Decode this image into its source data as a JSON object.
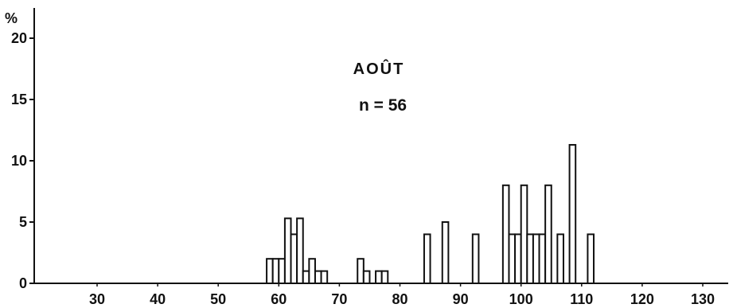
{
  "chart_data": {
    "type": "bar",
    "title": "AOÛT",
    "subtitle": "n = 56",
    "xlabel": "",
    "ylabel": "%",
    "xlim": [
      20,
      135
    ],
    "ylim": [
      0,
      21
    ],
    "x_ticks": [
      30,
      40,
      50,
      60,
      70,
      80,
      90,
      100,
      110,
      120,
      130
    ],
    "y_ticks": [
      0,
      5,
      10,
      15,
      20
    ],
    "bin_width": 1,
    "grid": false,
    "legend": "none",
    "bars": [
      {
        "x": 58.5,
        "value": 2
      },
      {
        "x": 59.5,
        "value": 2
      },
      {
        "x": 60.5,
        "value": 2
      },
      {
        "x": 61.5,
        "value": 5.3
      },
      {
        "x": 62.5,
        "value": 4
      },
      {
        "x": 63.5,
        "value": 5.3
      },
      {
        "x": 64.5,
        "value": 1
      },
      {
        "x": 65.5,
        "value": 2
      },
      {
        "x": 66.5,
        "value": 1
      },
      {
        "x": 67.5,
        "value": 1
      },
      {
        "x": 73.5,
        "value": 2
      },
      {
        "x": 74.5,
        "value": 1
      },
      {
        "x": 76.5,
        "value": 1
      },
      {
        "x": 77.5,
        "value": 1
      },
      {
        "x": 84.5,
        "value": 4
      },
      {
        "x": 87.5,
        "value": 5
      },
      {
        "x": 92.5,
        "value": 4
      },
      {
        "x": 97.5,
        "value": 8
      },
      {
        "x": 98.5,
        "value": 4
      },
      {
        "x": 99.5,
        "value": 4
      },
      {
        "x": 100.5,
        "value": 8
      },
      {
        "x": 101.5,
        "value": 4
      },
      {
        "x": 102.5,
        "value": 4
      },
      {
        "x": 103.5,
        "value": 4
      },
      {
        "x": 104.5,
        "value": 8
      },
      {
        "x": 106.5,
        "value": 4
      },
      {
        "x": 108.5,
        "value": 11.3
      },
      {
        "x": 111.5,
        "value": 4
      }
    ],
    "colors": {
      "bar_fill": "#ffffff",
      "bar_stroke": "#111111",
      "axis": "#111111"
    }
  }
}
